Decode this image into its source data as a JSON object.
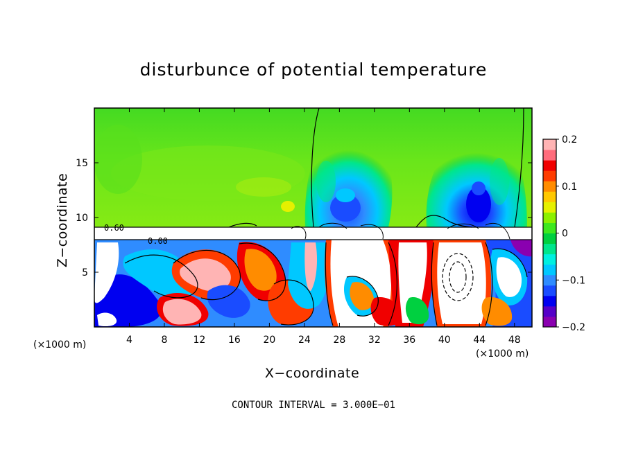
{
  "chart_data": {
    "type": "heatmap",
    "title": "disturbunce of potential temperature",
    "xlabel": "X−coordinate",
    "ylabel": "Z−coordinate",
    "x_unit": "(×1000 m)",
    "x_ticks": [
      4,
      8,
      12,
      16,
      20,
      24,
      28,
      32,
      36,
      40,
      44,
      48
    ],
    "y_ticks": [
      5,
      10,
      15
    ],
    "xlim": [
      0,
      50
    ],
    "ylim": [
      0,
      20
    ],
    "colorbar": {
      "ticks": [
        0.2,
        0.1,
        0,
        -0.1,
        -0.2
      ],
      "tick_labels": [
        "0.2",
        "0.1",
        "0",
        "−0.1",
        "−0.2"
      ],
      "range": [
        -0.2,
        0.2
      ]
    },
    "contour_labels": [
      "0.60",
      "0.00"
    ],
    "contour_interval_note": "CONTOUR INTERVAL = 3.000E−01",
    "features": {
      "stable_band_z": [
        8.1,
        9.2
      ],
      "cool_plumes": [
        {
          "x": 28.5,
          "z_range": [
            9.2,
            13
          ],
          "min_value": -0.1
        },
        {
          "x": 44,
          "z_range": [
            9.2,
            13
          ],
          "min_value": -0.13
        }
      ],
      "upper_layer_value": 0.03
    }
  },
  "colors": {
    "upper_background": "#4ede1e",
    "colorbar_stops": [
      "#8a00b0",
      "#5500c8",
      "#0000f0",
      "#1a4cff",
      "#2f8cff",
      "#00c8ff",
      "#00f0e0",
      "#00e68c",
      "#00d040",
      "#3ee81e",
      "#8cf000",
      "#e6f000",
      "#ffc800",
      "#ff8c00",
      "#ff3c00",
      "#f00000",
      "#ff6c7c",
      "#ffb4b4"
    ]
  }
}
